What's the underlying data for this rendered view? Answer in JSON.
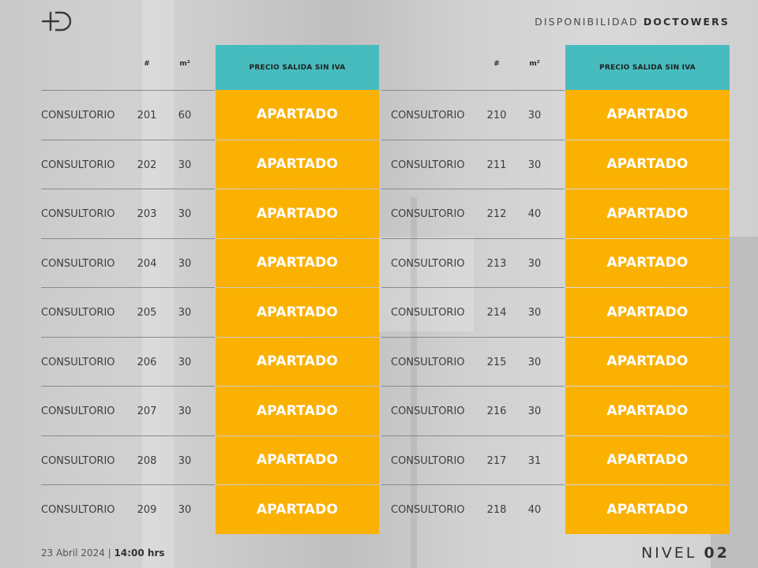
{
  "header": {
    "title_prefix": "DISPONIBILIDAD",
    "title_brand": "DOCTOWERS"
  },
  "columns": {
    "number_header": "#",
    "area_header": "m²",
    "price_header": "PRECIO SALIDA SIN IVA"
  },
  "colors": {
    "price_header_bg": "#47bcbf",
    "status_bg": "#fbb102",
    "status_text": "#ffffff"
  },
  "left_units": [
    {
      "type": "CONSULTORIO",
      "number": "201",
      "m2": "60",
      "status": "APARTADO"
    },
    {
      "type": "CONSULTORIO",
      "number": "202",
      "m2": "30",
      "status": "APARTADO"
    },
    {
      "type": "CONSULTORIO",
      "number": "203",
      "m2": "30",
      "status": "APARTADO"
    },
    {
      "type": "CONSULTORIO",
      "number": "204",
      "m2": "30",
      "status": "APARTADO"
    },
    {
      "type": "CONSULTORIO",
      "number": "205",
      "m2": "30",
      "status": "APARTADO"
    },
    {
      "type": "CONSULTORIO",
      "number": "206",
      "m2": "30",
      "status": "APARTADO"
    },
    {
      "type": "CONSULTORIO",
      "number": "207",
      "m2": "30",
      "status": "APARTADO"
    },
    {
      "type": "CONSULTORIO",
      "number": "208",
      "m2": "30",
      "status": "APARTADO"
    },
    {
      "type": "CONSULTORIO",
      "number": "209",
      "m2": "30",
      "status": "APARTADO"
    }
  ],
  "right_units": [
    {
      "type": "CONSULTORIO",
      "number": "210",
      "m2": "30",
      "status": "APARTADO"
    },
    {
      "type": "CONSULTORIO",
      "number": "211",
      "m2": "30",
      "status": "APARTADO"
    },
    {
      "type": "CONSULTORIO",
      "number": "212",
      "m2": "40",
      "status": "APARTADO"
    },
    {
      "type": "CONSULTORIO",
      "number": "213",
      "m2": "30",
      "status": "APARTADO"
    },
    {
      "type": "CONSULTORIO",
      "number": "214",
      "m2": "30",
      "status": "APARTADO"
    },
    {
      "type": "CONSULTORIO",
      "number": "215",
      "m2": "30",
      "status": "APARTADO"
    },
    {
      "type": "CONSULTORIO",
      "number": "216",
      "m2": "30",
      "status": "APARTADO"
    },
    {
      "type": "CONSULTORIO",
      "number": "217",
      "m2": "31",
      "status": "APARTADO"
    },
    {
      "type": "CONSULTORIO",
      "number": "218",
      "m2": "40",
      "status": "APARTADO"
    }
  ],
  "footer": {
    "date": "23 Abril 2024",
    "separator": " | ",
    "time": "14:00 hrs",
    "level_label": "NIVEL",
    "level_number": "02"
  }
}
